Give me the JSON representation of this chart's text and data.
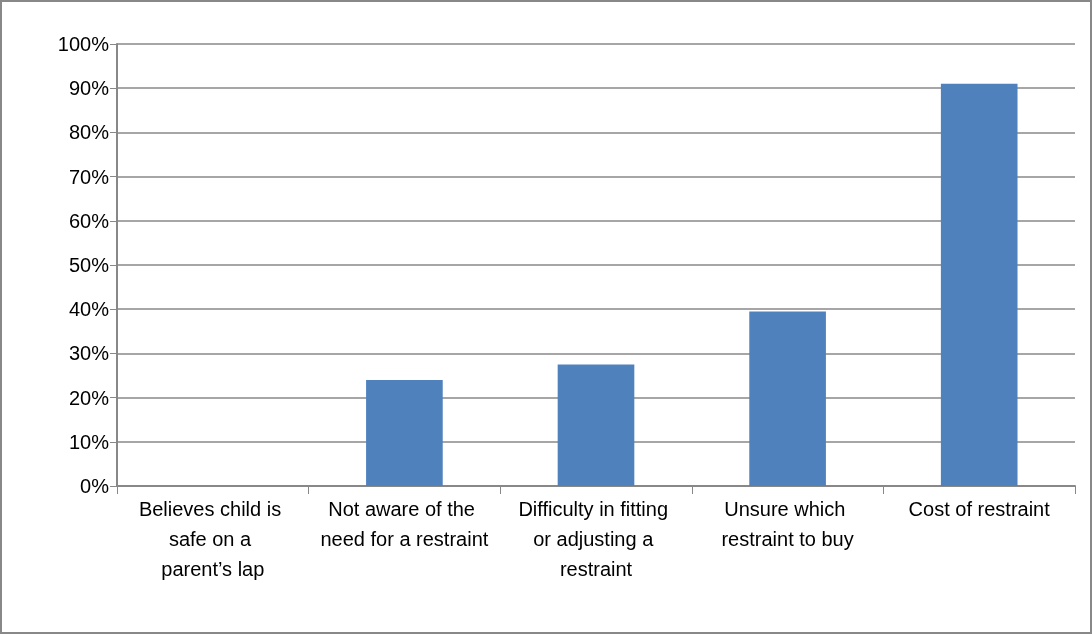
{
  "chart_data": {
    "type": "bar",
    "categories": [
      "Believes child is safe on a parent’s lap",
      "Not aware of the need for a restraint",
      "Difficulty in fitting or adjusting a restraint",
      "Unsure which restraint to buy",
      "Cost of restraint"
    ],
    "values": [
      0,
      24,
      27.5,
      39.5,
      91
    ],
    "color": "#4f81bd",
    "ylim": [
      0,
      100
    ],
    "yticks": [
      {
        "value": 0,
        "label": "0%"
      },
      {
        "value": 10,
        "label": "10%"
      },
      {
        "value": 20,
        "label": "20%"
      },
      {
        "value": 30,
        "label": "30%"
      },
      {
        "value": 40,
        "label": "40%"
      },
      {
        "value": 50,
        "label": "50%"
      },
      {
        "value": 60,
        "label": "60%"
      },
      {
        "value": 70,
        "label": "70%"
      },
      {
        "value": 80,
        "label": "80%"
      },
      {
        "value": 90,
        "label": "90%"
      },
      {
        "value": 100,
        "label": "100%"
      }
    ],
    "grid": true
  }
}
